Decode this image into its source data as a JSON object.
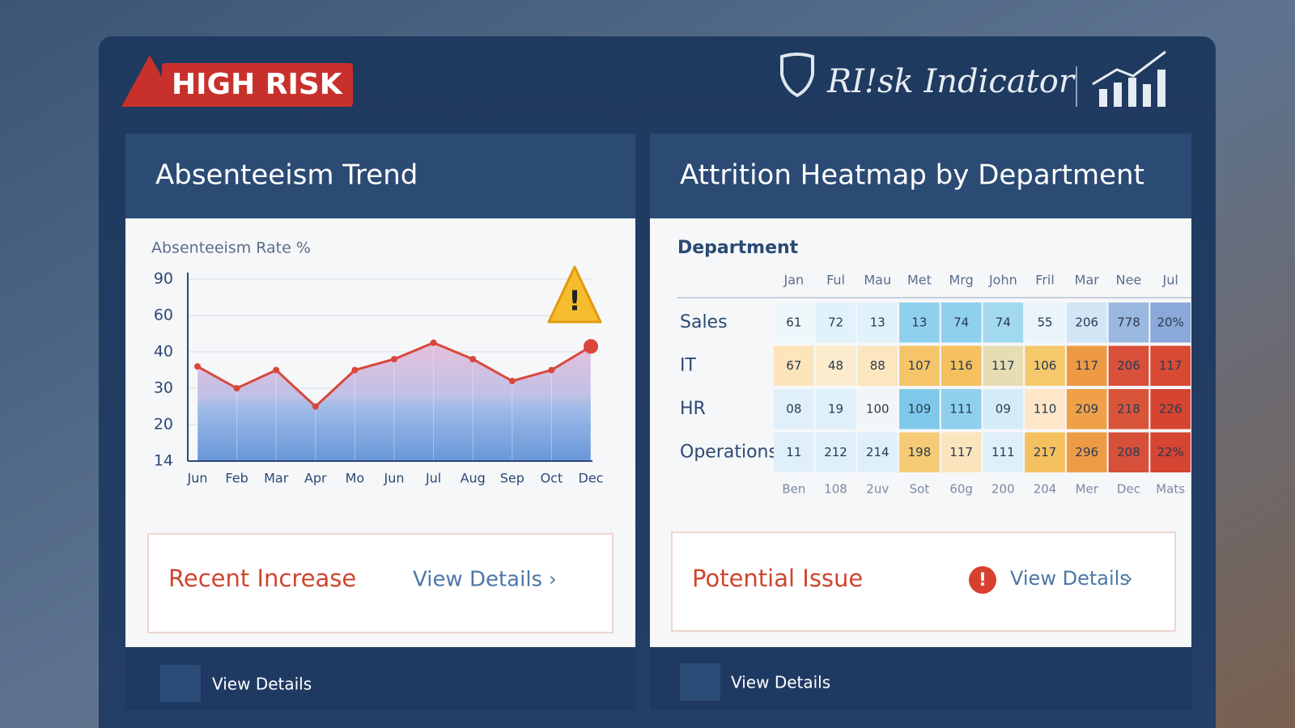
{
  "header": {
    "badge": "HIGH RISK",
    "brand": "RI!sk Indicator"
  },
  "left_panel": {
    "title": "Absenteeism Trend",
    "alert": "Recent Increase",
    "link": "View Details",
    "footer": "View Details"
  },
  "chart_data": {
    "type": "line",
    "y_label": "Absenteeism Rate %",
    "categories": [
      "Jun",
      "Feb",
      "Mar",
      "Apr",
      "Mo",
      "Jun",
      "Jul",
      "Aug",
      "Sep",
      "Oct",
      "Dec"
    ],
    "series": [
      {
        "color": "#d9473b",
        "values": [
          36,
          30,
          35,
          25,
          35,
          38,
          45,
          38,
          32,
          35,
          43
        ]
      }
    ],
    "ylim": [
      14,
      90
    ],
    "yticks": [
      14,
      20,
      30,
      40,
      60,
      90
    ],
    "grid": true
  },
  "right_panel": {
    "title": "Attrition Heatmap by Department",
    "alert": "Potential Issue",
    "link": "View Details",
    "footer": "View Details",
    "heatmap": {
      "row_header": "Department",
      "columns": [
        "Jan",
        "Ful",
        "Mau",
        "Met",
        "Mrg",
        "John",
        "Fril",
        "Mar",
        "Nee",
        "Jul"
      ],
      "bottom_labels": [
        "Ben",
        "108",
        "2uv",
        "Sot",
        "60g",
        "200",
        "204",
        "Mer",
        "Dec",
        "Mats"
      ],
      "rows": [
        {
          "label": "Sales",
          "cells": [
            "61",
            "72",
            "13",
            "13",
            "74",
            "74",
            "55",
            "206",
            "778",
            "20%"
          ],
          "colors": [
            "#eef7fc",
            "#e2f2fb",
            "#e2f2fb",
            "#8fd0ee",
            "#8fd0ee",
            "#a3d8f1",
            "#e9f5fb",
            "#d3e6f6",
            "#9bb8e0",
            "#8aa8d8"
          ]
        },
        {
          "label": "IT",
          "cells": [
            "67",
            "48",
            "88",
            "107",
            "116",
            "117",
            "106",
            "117",
            "206",
            "117"
          ],
          "colors": [
            "#fce4bb",
            "#fcebcd",
            "#fce6bf",
            "#f6c56a",
            "#f5c060",
            "#e6ddb4",
            "#f6c86c",
            "#ee9a45",
            "#d9503a",
            "#d94a34"
          ]
        },
        {
          "label": "HR",
          "cells": [
            "08",
            "19",
            "100",
            "109",
            "111",
            "09",
            "110",
            "209",
            "218",
            "226"
          ],
          "colors": [
            "#dff0fa",
            "#dff0fa",
            "#f3f6f8",
            "#7fc8ea",
            "#8fd0ee",
            "#d5ecf8",
            "#fde7c8",
            "#efa048",
            "#d9553a",
            "#d64432"
          ]
        },
        {
          "label": "Operations",
          "cells": [
            "11",
            "212",
            "214",
            "198",
            "117",
            "111",
            "217",
            "296",
            "208",
            "22%"
          ],
          "colors": [
            "#dff0fa",
            "#dff0fa",
            "#dff0fa",
            "#f6cb76",
            "#fbe5bd",
            "#dff0fa",
            "#f5c060",
            "#ee9b45",
            "#d6503a",
            "#d64432"
          ]
        }
      ]
    }
  }
}
